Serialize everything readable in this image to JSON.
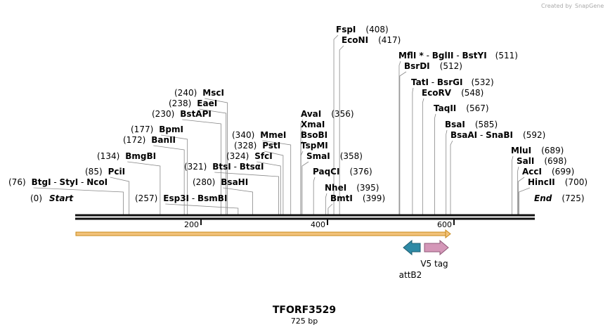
{
  "credit": {
    "prefix": "Created by",
    "brand": "SnapGene"
  },
  "plasmid": {
    "name": "TFORF3529",
    "length_label": "725 bp",
    "length": 725
  },
  "colors": {
    "backbone": "#111111",
    "orf_fill": "#f2c27a",
    "orf_stroke": "#c88a1a",
    "attB2": "#2e8aa6",
    "v5tag": "#d497b8"
  },
  "labels": {
    "start": {
      "text": "Start",
      "pos": "(0)"
    },
    "end": {
      "text": "End",
      "pos": "(725)"
    }
  },
  "ticks": [
    "200",
    "400",
    "600"
  ],
  "features": [
    {
      "name": "attB2",
      "start": 526,
      "end": 553,
      "direction": "reverse"
    },
    {
      "name": "V5 tag",
      "start": 553,
      "end": 595,
      "direction": "forward"
    }
  ],
  "sites": [
    {
      "parts": [
        "BtgI",
        "StyI",
        "NcoI"
      ],
      "pos": "(76)",
      "bp": 76
    },
    {
      "parts": [
        "PciI"
      ],
      "pos": "(85)",
      "bp": 85
    },
    {
      "parts": [
        "BmgBI"
      ],
      "pos": "(134)",
      "bp": 134
    },
    {
      "parts": [
        "BanII"
      ],
      "pos": "(172)",
      "bp": 172
    },
    {
      "parts": [
        "BpmI"
      ],
      "pos": "(177)",
      "bp": 177
    },
    {
      "parts": [
        "BstAPI"
      ],
      "pos": "(230)",
      "bp": 230
    },
    {
      "parts": [
        "EaeI"
      ],
      "pos": "(238)",
      "bp": 238
    },
    {
      "parts": [
        "MscI"
      ],
      "pos": "(240)",
      "bp": 240
    },
    {
      "parts": [
        "Esp3I",
        "BsmBI"
      ],
      "pos": "(257)",
      "bp": 257
    },
    {
      "parts": [
        "BsaHI"
      ],
      "pos": "(280)",
      "bp": 280
    },
    {
      "parts": [
        "BtsI",
        "BtsαI"
      ],
      "pos": "(321)",
      "bp": 321
    },
    {
      "parts": [
        "SfcI"
      ],
      "pos": "(324)",
      "bp": 324
    },
    {
      "parts": [
        "PstI"
      ],
      "pos": "(328)",
      "bp": 328
    },
    {
      "parts": [
        "MmeI"
      ],
      "pos": "(340)",
      "bp": 340
    },
    {
      "parts": [
        "AvaI"
      ],
      "pos": "(356)",
      "bp": 356
    },
    {
      "parts": [
        "XmaI"
      ],
      "pos": "",
      "bp": 356
    },
    {
      "parts": [
        "BsoBI"
      ],
      "pos": "",
      "bp": 356
    },
    {
      "parts": [
        "TspMI"
      ],
      "pos": "",
      "bp": 356
    },
    {
      "parts": [
        "SmaI"
      ],
      "pos": "(358)",
      "bp": 358
    },
    {
      "parts": [
        "PaqCI"
      ],
      "pos": "(376)",
      "bp": 376
    },
    {
      "parts": [
        "NheI"
      ],
      "pos": "(395)",
      "bp": 395
    },
    {
      "parts": [
        "BmtI"
      ],
      "pos": "(399)",
      "bp": 399
    },
    {
      "parts": [
        "FspI"
      ],
      "pos": "(408)",
      "bp": 408
    },
    {
      "parts": [
        "EcoNI"
      ],
      "pos": "(417)",
      "bp": 417
    },
    {
      "parts": [
        "MflI *",
        "BglII",
        "BstYI"
      ],
      "pos": "(511)",
      "bp": 511
    },
    {
      "parts": [
        "BsrDI"
      ],
      "pos": "(512)",
      "bp": 512
    },
    {
      "parts": [
        "TatI",
        "BsrGI"
      ],
      "pos": "(532)",
      "bp": 532
    },
    {
      "parts": [
        "EcoRV"
      ],
      "pos": "(548)",
      "bp": 548
    },
    {
      "parts": [
        "TaqII"
      ],
      "pos": "(567)",
      "bp": 567
    },
    {
      "parts": [
        "BsaI"
      ],
      "pos": "(585)",
      "bp": 585
    },
    {
      "parts": [
        "BsaAI",
        "SnaBI"
      ],
      "pos": "(592)",
      "bp": 592
    },
    {
      "parts": [
        "MluI"
      ],
      "pos": "(689)",
      "bp": 689
    },
    {
      "parts": [
        "SalI"
      ],
      "pos": "(698)",
      "bp": 698
    },
    {
      "parts": [
        "AccI"
      ],
      "pos": "(699)",
      "bp": 699
    },
    {
      "parts": [
        "HincII"
      ],
      "pos": "(700)",
      "bp": 700
    }
  ]
}
